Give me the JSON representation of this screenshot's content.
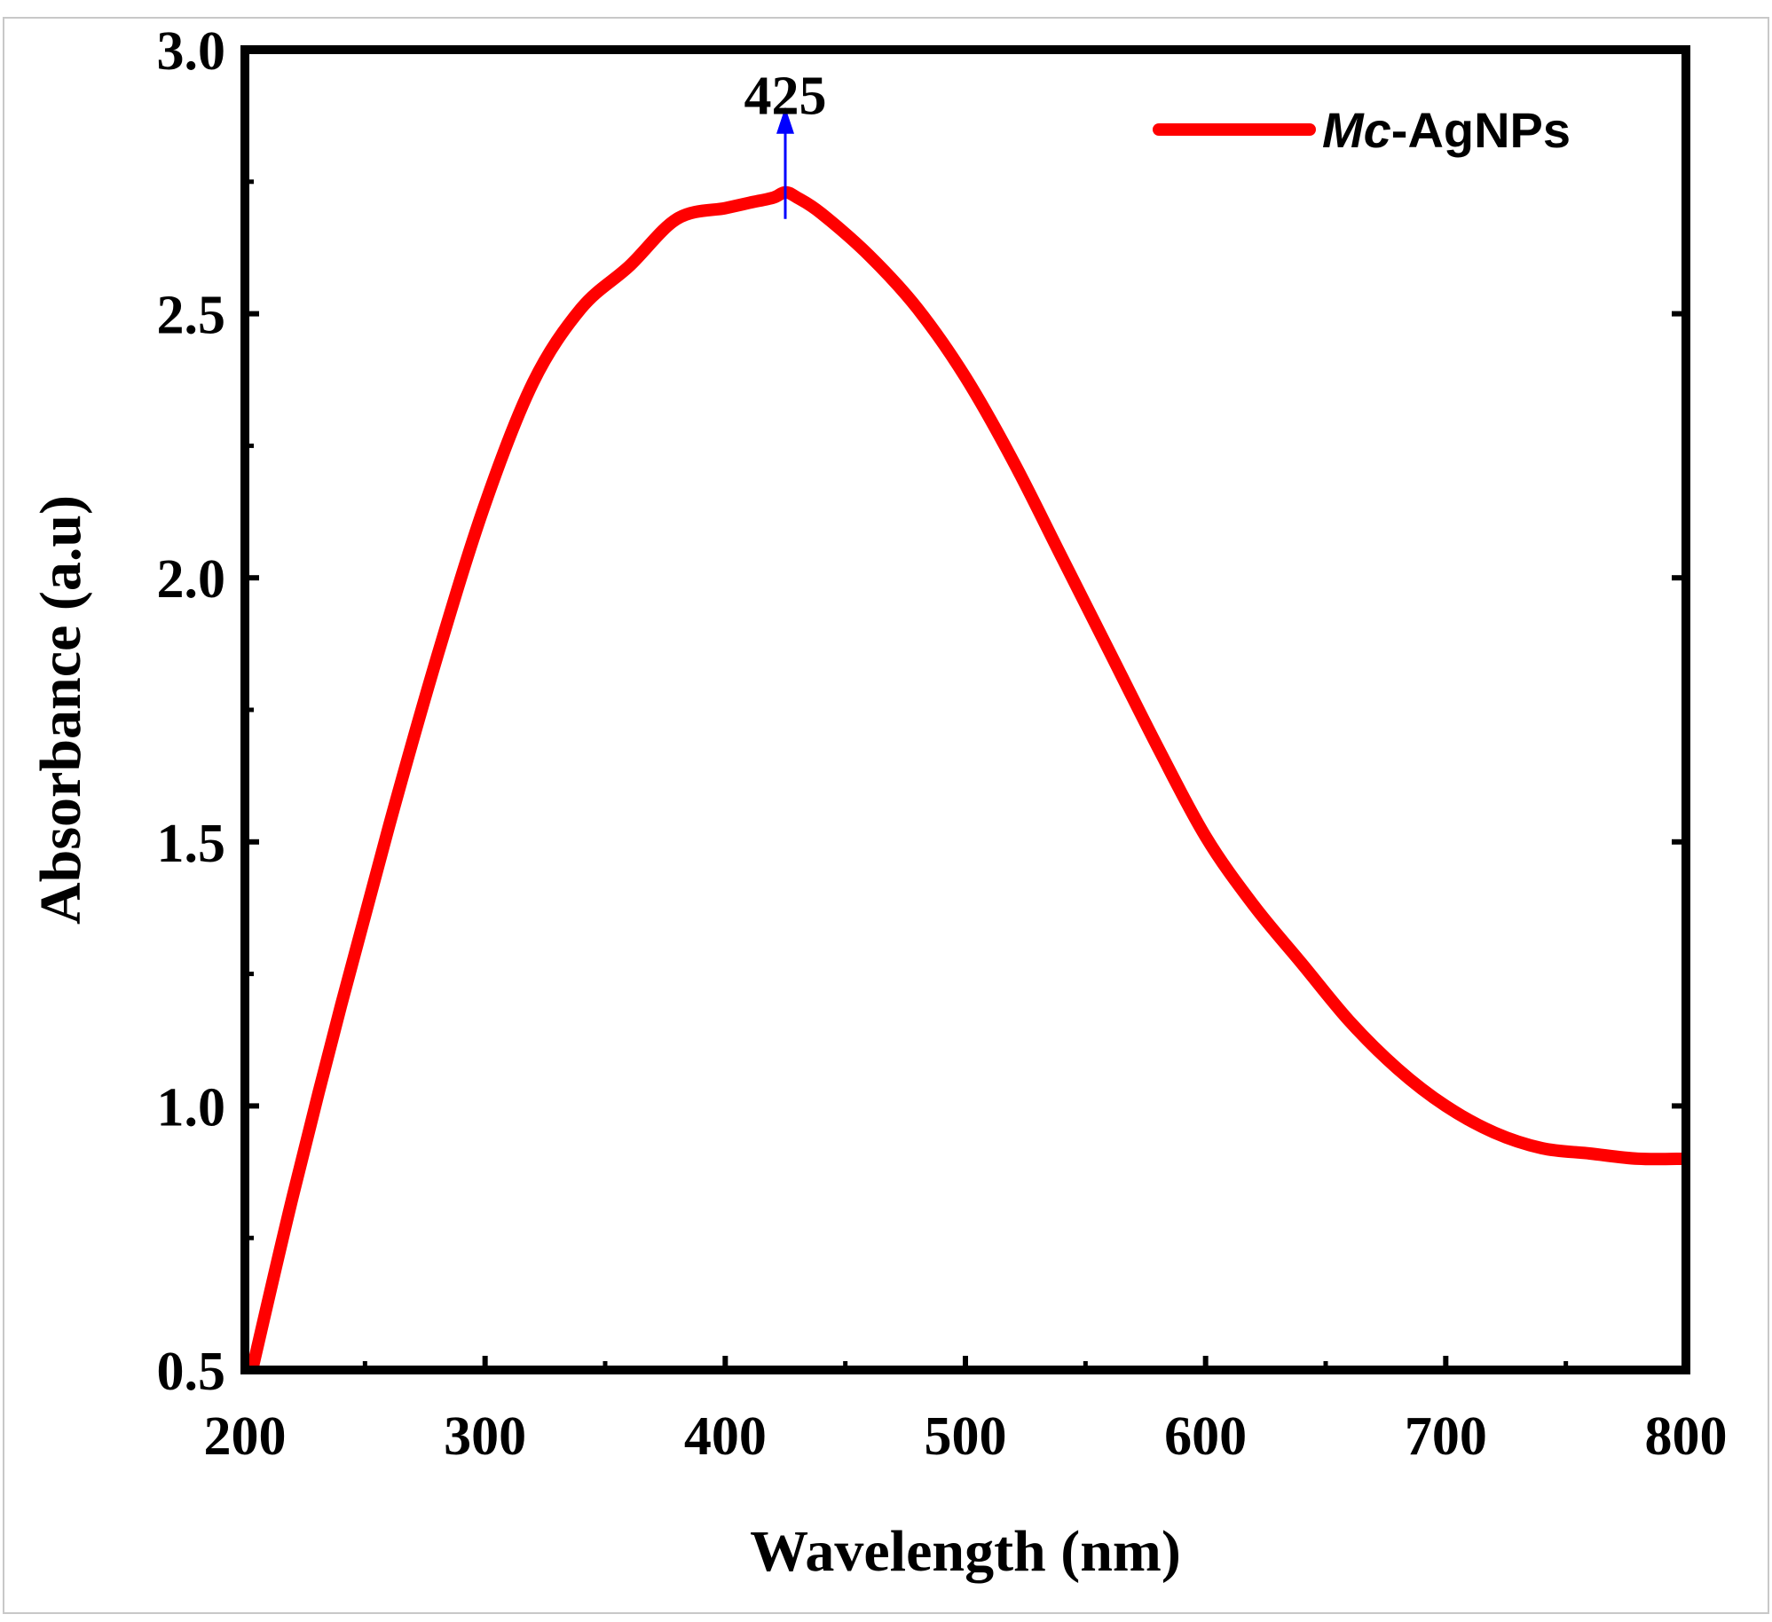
{
  "chart_data": {
    "type": "line",
    "xlabel": "Wavelength (nm)",
    "ylabel": "Absorbance (a.u)",
    "xlim": [
      200,
      800
    ],
    "ylim": [
      0.5,
      3.0
    ],
    "x_ticks": [
      200,
      300,
      400,
      500,
      600,
      700,
      800
    ],
    "x_tick_labels": [
      "200",
      "300",
      "400",
      "500",
      "600",
      "700",
      "800"
    ],
    "y_ticks": [
      0.5,
      1.0,
      1.5,
      2.0,
      2.5,
      3.0
    ],
    "y_tick_labels": [
      "0.5",
      "1.0",
      "1.5",
      "2.0",
      "2.5",
      "3.0"
    ],
    "legend_position": "top-right",
    "grid": false,
    "series": [
      {
        "name_prefix": "Mc",
        "name_suffix": "-AgNPs",
        "color": "#ff0000",
        "x": [
          203,
          220,
          240,
          260,
          280,
          300,
          320,
          340,
          360,
          380,
          400,
          410,
          420,
          425,
          430,
          440,
          460,
          480,
          500,
          520,
          540,
          560,
          580,
          600,
          620,
          640,
          660,
          680,
          700,
          720,
          740,
          760,
          780,
          800
        ],
        "y": [
          0.5,
          0.83,
          1.19,
          1.53,
          1.85,
          2.14,
          2.37,
          2.51,
          2.59,
          2.68,
          2.7,
          2.71,
          2.72,
          2.73,
          2.72,
          2.69,
          2.61,
          2.51,
          2.38,
          2.22,
          2.04,
          1.86,
          1.68,
          1.51,
          1.38,
          1.27,
          1.16,
          1.07,
          1.0,
          0.95,
          0.92,
          0.91,
          0.9,
          0.9
        ]
      }
    ],
    "annotations": [
      {
        "text": "425",
        "x": 425,
        "y": 2.73,
        "arrow": "up",
        "arrow_color": "#0000ff"
      }
    ]
  }
}
